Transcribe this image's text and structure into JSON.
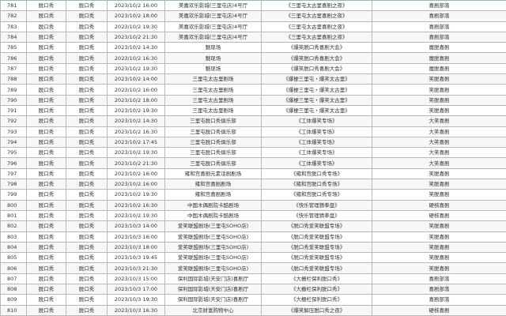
{
  "table": {
    "rows": [
      [
        "781",
        "脱口秀",
        "脱口秀",
        "2023/10/2 16:00",
        "美嘉欢乐影城(三里屯店)4号厅",
        "《三里屯太古里喜剧之夜》",
        "喜剧部落"
      ],
      [
        "782",
        "脱口秀",
        "脱口秀",
        "2023/10/2 18:00",
        "美嘉欢乐影城(三里屯店)4号厅",
        "《三里屯太古里喜剧之夜》",
        "喜剧部落"
      ],
      [
        "783",
        "脱口秀",
        "脱口秀",
        "2023/10/2 19:30",
        "美嘉欢乐影城(三里屯店)4号厅",
        "《三里屯太古里喜剧之夜》",
        "喜剧部落"
      ],
      [
        "784",
        "脱口秀",
        "脱口秀",
        "2023/10/2 21:30",
        "美嘉欢乐影城(三里屯店)4号厅",
        "《三里屯太古里喜剧之夜》",
        "喜剧部落"
      ],
      [
        "785",
        "脱口秀",
        "脱口秀",
        "2023/10/2 14:30",
        "魅现场",
        "《爆笑脱口秀喜剧大会》",
        "魔脱喜剧"
      ],
      [
        "786",
        "脱口秀",
        "脱口秀",
        "2023/10/2 16:30",
        "魅现场",
        "《爆笑脱口秀喜剧大会》",
        "魔脱喜剧"
      ],
      [
        "787",
        "脱口秀",
        "脱口秀",
        "2023/10/2 19:30",
        "魅现场",
        "《爆笑脱口秀喜剧大会》",
        "魔脱喜剧"
      ],
      [
        "788",
        "脱口秀",
        "脱口秀",
        "2023/10/2 14:00",
        "三里屯太古里剧场",
        "《爆梗三里屯・爆笑太古里》",
        "笑脱喜剧"
      ],
      [
        "789",
        "脱口秀",
        "脱口秀",
        "2023/10/2 16:00",
        "三里屯太古里剧场",
        "《爆梗三里屯・爆笑太古里》",
        "笑脱喜剧"
      ],
      [
        "790",
        "脱口秀",
        "脱口秀",
        "2023/10/2 18:00",
        "三里屯太古里剧场",
        "《爆梗三里屯・爆笑太古里》",
        "笑脱喜剧"
      ],
      [
        "791",
        "脱口秀",
        "脱口秀",
        "2023/10/2 19:30",
        "三里屯太古里剧场",
        "《爆梗三里屯・爆笑太古里》",
        "笑脱喜剧"
      ],
      [
        "792",
        "脱口秀",
        "脱口秀",
        "2023/10/2 14:30",
        "三里屯脱口秀俱乐部",
        "《工体爆笑专场》",
        "大笑喜剧"
      ],
      [
        "793",
        "脱口秀",
        "脱口秀",
        "2023/10/2 16:30",
        "三里屯脱口秀俱乐部",
        "《工体爆笑专场》",
        "大笑喜剧"
      ],
      [
        "794",
        "脱口秀",
        "脱口秀",
        "2023/10/2 17:45",
        "三里屯脱口秀俱乐部",
        "《工体爆笑专场》",
        "大笑喜剧"
      ],
      [
        "795",
        "脱口秀",
        "脱口秀",
        "2023/10/2 19:30",
        "三里屯脱口秀俱乐部",
        "《工体爆笑专场》",
        "大笑喜剧"
      ],
      [
        "796",
        "脱口秀",
        "脱口秀",
        "2023/10/2 21:30",
        "三里屯脱口秀俱乐部",
        "《工体爆笑专场》",
        "大笑喜剧"
      ],
      [
        "797",
        "脱口秀",
        "脱口秀",
        "2023/10/2 16:00",
        "雍和宫喜剧元素话剧剧场",
        "《雍和宫脱口秀专场》",
        "笑脱喜剧"
      ],
      [
        "798",
        "脱口秀",
        "脱口秀",
        "2023/10/2 16:00",
        "雍和宫喜剧剧场",
        "《雍和宫脱口秀专场》",
        "笑脱喜剧"
      ],
      [
        "799",
        "脱口秀",
        "脱口秀",
        "2023/10/2 19:30",
        "雍和宫喜剧剧场",
        "《雍和宫脱口秀专场》",
        "笑脱喜剧"
      ],
      [
        "800",
        "脱口秀",
        "脱口秀",
        "2023/10/2 16:30",
        "中国木偶剧院卡酷剧场",
        "《快乐管理猜拳盘》",
        "硬核喜剧"
      ],
      [
        "801",
        "脱口秀",
        "脱口秀",
        "2023/10/2 19:30",
        "中国木偶剧院卡酷剧场",
        "《快乐管理猜拳盘》",
        "硬核喜剧"
      ],
      [
        "802",
        "脱口秀",
        "脱口秀",
        "2023/10/3 14:00",
        "爱笑联盟剧场(三里屯SOHO店)",
        "《脱口秀爱笑联盟专场》",
        "笑脱喜剧"
      ],
      [
        "803",
        "脱口秀",
        "脱口秀",
        "2023/10/3 16:00",
        "爱笑联盟剧场(三里屯SOHO店)",
        "《脱口秀爱笑联盟专场》",
        "笑脱喜剧"
      ],
      [
        "804",
        "脱口秀",
        "脱口秀",
        "2023/10/3 18:00",
        "爱笑联盟剧场(三里屯SOHO店)",
        "《脱口秀爱笑联盟专场》",
        "笑脱喜剧"
      ],
      [
        "805",
        "脱口秀",
        "脱口秀",
        "2023/10/3 19:45",
        "爱笑联盟剧场(三里屯SOHO店)",
        "《脱口秀爱笑联盟专场》",
        "笑脱喜剧"
      ],
      [
        "806",
        "脱口秀",
        "脱口秀",
        "2023/10/3 21:30",
        "爱笑联盟剧场(三里屯SOHO店)",
        "《脱口秀爱笑联盟专场》",
        "笑脱喜剧"
      ],
      [
        "807",
        "脱口秀",
        "脱口秀",
        "2023/10/3 15:00",
        "保利国际影城(天安门店)喜剧厅",
        "《大栅栏保利脱口秀》",
        "喜剧部落"
      ],
      [
        "808",
        "脱口秀",
        "脱口秀",
        "2023/10/3 17:00",
        "保利国际影城(天安门店)喜剧厅",
        "《大栅栏保利脱口秀》",
        "喜剧部落"
      ],
      [
        "809",
        "脱口秀",
        "脱口秀",
        "2023/10/3 19:30",
        "保利国际影城(天安门店)喜剧厅",
        "《大栅栏保利脱口秀》",
        "喜剧部落"
      ],
      [
        "810",
        "脱口秀",
        "脱口秀",
        "2023/10/3 16:30",
        "北京财富购物中心",
        "《爆笑解压脱口秀之夜》",
        "硬核喜剧"
      ]
    ]
  }
}
